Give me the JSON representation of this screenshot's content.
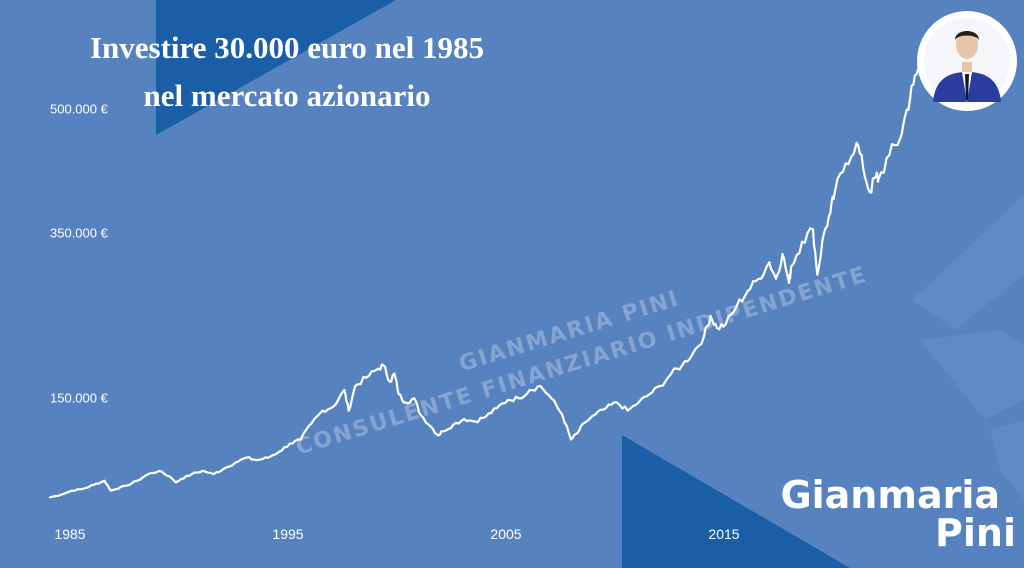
{
  "title": {
    "line1": "Investire 30.000 euro nel 1985",
    "line2": "nel mercato azionario"
  },
  "watermark": {
    "line1": "GIANMARIA PINI",
    "line2": "CONSULENTE FINANZIARIO INDIPENDENTE"
  },
  "brand": {
    "line1": "Gianmaria",
    "line2": "Pini"
  },
  "colors": {
    "background": "#5682c0",
    "accent_dark": "#1a5ea8",
    "line": "#ffffff"
  },
  "chart_data": {
    "type": "line",
    "ylim": [
      0,
      570000
    ],
    "y_ticks": [
      "500.000 €",
      "350.000 €",
      "150.000 €"
    ],
    "y_tick_values": [
      500000,
      350000,
      150000
    ],
    "x_ticks": [
      "1985",
      "1995",
      "2005",
      "2015"
    ],
    "x_tick_values": [
      1985,
      1995,
      2005,
      2015
    ],
    "grid": false,
    "series": [
      {
        "values": [
          [
            1985.0,
            30000
          ],
          [
            1985.5,
            33000
          ],
          [
            1986.0,
            38000
          ],
          [
            1986.5,
            40000
          ],
          [
            1987.0,
            45000
          ],
          [
            1987.5,
            50000
          ],
          [
            1987.8,
            38000
          ],
          [
            1988.0,
            40000
          ],
          [
            1988.5,
            44000
          ],
          [
            1989.0,
            50000
          ],
          [
            1989.5,
            58000
          ],
          [
            1990.0,
            62000
          ],
          [
            1990.5,
            55000
          ],
          [
            1990.8,
            48000
          ],
          [
            1991.0,
            52000
          ],
          [
            1991.5,
            58000
          ],
          [
            1992.0,
            62000
          ],
          [
            1992.5,
            58000
          ],
          [
            1993.0,
            65000
          ],
          [
            1993.5,
            72000
          ],
          [
            1994.0,
            78000
          ],
          [
            1994.5,
            75000
          ],
          [
            1995.0,
            78000
          ],
          [
            1995.5,
            85000
          ],
          [
            1996.0,
            95000
          ],
          [
            1996.5,
            100000
          ],
          [
            1997.0,
            120000
          ],
          [
            1997.5,
            135000
          ],
          [
            1998.0,
            140000
          ],
          [
            1998.5,
            160000
          ],
          [
            1998.7,
            135000
          ],
          [
            1999.0,
            165000
          ],
          [
            1999.5,
            175000
          ],
          [
            2000.0,
            185000
          ],
          [
            2000.3,
            190000
          ],
          [
            2000.6,
            170000
          ],
          [
            2000.8,
            180000
          ],
          [
            2001.0,
            155000
          ],
          [
            2001.3,
            145000
          ],
          [
            2001.7,
            150000
          ],
          [
            2002.0,
            130000
          ],
          [
            2002.5,
            115000
          ],
          [
            2002.8,
            105000
          ],
          [
            2003.0,
            110000
          ],
          [
            2003.5,
            118000
          ],
          [
            2004.0,
            125000
          ],
          [
            2004.5,
            122000
          ],
          [
            2005.0,
            128000
          ],
          [
            2005.5,
            138000
          ],
          [
            2006.0,
            148000
          ],
          [
            2006.5,
            150000
          ],
          [
            2007.0,
            160000
          ],
          [
            2007.5,
            165000
          ],
          [
            2008.0,
            150000
          ],
          [
            2008.5,
            130000
          ],
          [
            2008.9,
            100000
          ],
          [
            2009.2,
            108000
          ],
          [
            2009.5,
            120000
          ],
          [
            2010.0,
            130000
          ],
          [
            2010.5,
            138000
          ],
          [
            2011.0,
            145000
          ],
          [
            2011.5,
            135000
          ],
          [
            2012.0,
            145000
          ],
          [
            2012.5,
            155000
          ],
          [
            2013.0,
            165000
          ],
          [
            2013.5,
            180000
          ],
          [
            2014.0,
            190000
          ],
          [
            2014.5,
            205000
          ],
          [
            2015.0,
            225000
          ],
          [
            2015.3,
            250000
          ],
          [
            2015.6,
            235000
          ],
          [
            2016.0,
            240000
          ],
          [
            2016.5,
            262000
          ],
          [
            2017.0,
            280000
          ],
          [
            2017.5,
            295000
          ],
          [
            2018.0,
            315000
          ],
          [
            2018.3,
            295000
          ],
          [
            2018.6,
            325000
          ],
          [
            2018.9,
            290000
          ],
          [
            2019.0,
            310000
          ],
          [
            2019.5,
            340000
          ],
          [
            2020.0,
            355000
          ],
          [
            2020.2,
            300000
          ],
          [
            2020.5,
            350000
          ],
          [
            2020.8,
            375000
          ],
          [
            2021.0,
            400000
          ],
          [
            2021.5,
            435000
          ],
          [
            2022.0,
            460000
          ],
          [
            2022.3,
            430000
          ],
          [
            2022.6,
            400000
          ],
          [
            2022.9,
            420000
          ],
          [
            2023.0,
            415000
          ],
          [
            2023.5,
            445000
          ],
          [
            2024.0,
            465000
          ],
          [
            2024.3,
            500000
          ],
          [
            2024.6,
            530000
          ],
          [
            2024.9,
            555000
          ]
        ]
      }
    ]
  }
}
